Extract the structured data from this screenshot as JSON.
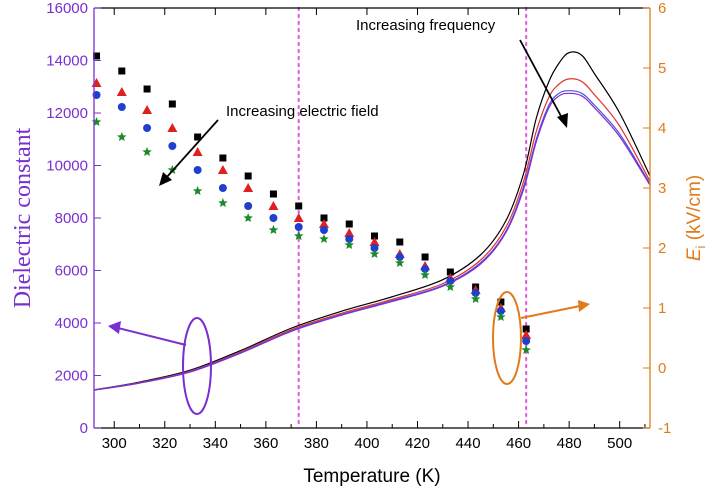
{
  "chart_data": {
    "type": "scatter",
    "xlabel": "Temperature (K)",
    "ylabel_left": "Dielectric constant",
    "ylabel_right_main": "E",
    "ylabel_right_sub": "i",
    "ylabel_right_unit": " (kV/cm)",
    "xlim": [
      292,
      512
    ],
    "ylim_left": [
      0,
      16000
    ],
    "ylim_right": [
      -1,
      6
    ],
    "x_ticks": [
      300,
      320,
      340,
      360,
      380,
      400,
      420,
      440,
      460,
      480,
      500
    ],
    "x_tick_labels": [
      "300",
      "320",
      "340",
      "360",
      "380",
      "400",
      "420",
      "440",
      "460",
      "480",
      "500"
    ],
    "y_ticks_left": [
      0,
      2000,
      4000,
      6000,
      8000,
      10000,
      12000,
      14000,
      16000
    ],
    "y_tick_labels_left": [
      "0",
      "2000",
      "4000",
      "6000",
      "8000",
      "10000",
      "12000",
      "14000",
      "16000"
    ],
    "y_ticks_right": [
      -1,
      0,
      1,
      2,
      3,
      4,
      5,
      6
    ],
    "y_tick_labels_right": [
      "-1",
      "0",
      "1",
      "2",
      "3",
      "4",
      "5",
      "6"
    ],
    "vlines": [
      373,
      463
    ],
    "colors": {
      "left_axis": "#7a2fd0",
      "right_axis": "#e07b1a",
      "vline": "#e060e0",
      "curves": [
        "#000000",
        "#e03030",
        "#5050e0",
        "#7a2fd0"
      ]
    },
    "series_points": [
      {
        "marker": "square",
        "color": "#000000",
        "x": [
          293,
          303,
          313,
          323,
          333,
          343,
          353,
          363,
          373,
          383,
          393,
          403,
          413,
          423,
          433,
          443,
          453,
          463
        ],
        "y": [
          5.2,
          4.95,
          4.65,
          4.4,
          3.85,
          3.5,
          3.2,
          2.9,
          2.7,
          2.5,
          2.4,
          2.2,
          2.1,
          1.85,
          1.6,
          1.35,
          1.1,
          0.65
        ]
      },
      {
        "marker": "triangle",
        "color": "#e02020",
        "x": [
          293,
          303,
          313,
          323,
          333,
          343,
          353,
          363,
          373,
          383,
          393,
          403,
          413,
          423,
          433,
          443,
          453,
          463
        ],
        "y": [
          4.75,
          4.6,
          4.3,
          4.0,
          3.6,
          3.3,
          3.0,
          2.7,
          2.5,
          2.4,
          2.25,
          2.1,
          1.9,
          1.7,
          1.5,
          1.3,
          1.0,
          0.55
        ]
      },
      {
        "marker": "circle",
        "color": "#1f3fd0",
        "x": [
          293,
          303,
          313,
          323,
          333,
          343,
          353,
          363,
          373,
          383,
          393,
          403,
          413,
          423,
          433,
          443,
          453,
          463
        ],
        "y": [
          4.55,
          4.35,
          4.0,
          3.7,
          3.3,
          3.0,
          2.7,
          2.5,
          2.35,
          2.3,
          2.15,
          2.0,
          1.85,
          1.65,
          1.45,
          1.25,
          0.95,
          0.45
        ]
      },
      {
        "marker": "star",
        "color": "#1a8a2a",
        "x": [
          293,
          303,
          313,
          323,
          333,
          343,
          353,
          363,
          373,
          383,
          393,
          403,
          413,
          423,
          433,
          443,
          453,
          463
        ],
        "y": [
          4.1,
          3.85,
          3.6,
          3.3,
          2.95,
          2.75,
          2.5,
          2.3,
          2.2,
          2.15,
          2.05,
          1.9,
          1.75,
          1.55,
          1.35,
          1.15,
          0.85,
          0.3
        ]
      }
    ],
    "series_curves": [
      {
        "color": "#000000",
        "x": [
          292,
          310,
          330,
          350,
          370,
          390,
          410,
          430,
          445,
          455,
          462,
          467,
          472,
          476,
          480,
          485,
          490,
          500,
          512
        ],
        "y": [
          1450,
          1750,
          2200,
          2950,
          3800,
          4450,
          5000,
          5650,
          6600,
          7900,
          9700,
          11800,
          13200,
          13900,
          14300,
          14200,
          13500,
          12000,
          9600
        ]
      },
      {
        "color": "#e03030",
        "x": [
          292,
          310,
          330,
          350,
          370,
          390,
          410,
          430,
          445,
          455,
          462,
          467,
          472,
          476,
          480,
          485,
          490,
          500,
          512
        ],
        "y": [
          1450,
          1730,
          2170,
          2900,
          3740,
          4370,
          4900,
          5500,
          6400,
          7650,
          9400,
          11300,
          12600,
          13100,
          13300,
          13200,
          12700,
          11500,
          9400
        ]
      },
      {
        "color": "#5050e0",
        "x": [
          292,
          310,
          330,
          350,
          370,
          390,
          410,
          430,
          445,
          455,
          462,
          467,
          472,
          476,
          480,
          485,
          490,
          500,
          512
        ],
        "y": [
          1450,
          1720,
          2150,
          2870,
          3700,
          4320,
          4850,
          5430,
          6300,
          7500,
          9200,
          11000,
          12300,
          12750,
          12850,
          12750,
          12300,
          11200,
          9300
        ]
      },
      {
        "color": "#7a2fd0",
        "x": [
          292,
          310,
          330,
          350,
          370,
          390,
          410,
          430,
          445,
          455,
          462,
          467,
          472,
          476,
          480,
          485,
          490,
          500,
          512
        ],
        "y": [
          1440,
          1710,
          2130,
          2850,
          3680,
          4300,
          4820,
          5400,
          6250,
          7450,
          9100,
          10900,
          12200,
          12650,
          12750,
          12650,
          12200,
          11100,
          9250
        ]
      }
    ],
    "annotations": [
      {
        "text": "Increasing frequency"
      },
      {
        "text": "Increasing electric field"
      }
    ]
  }
}
